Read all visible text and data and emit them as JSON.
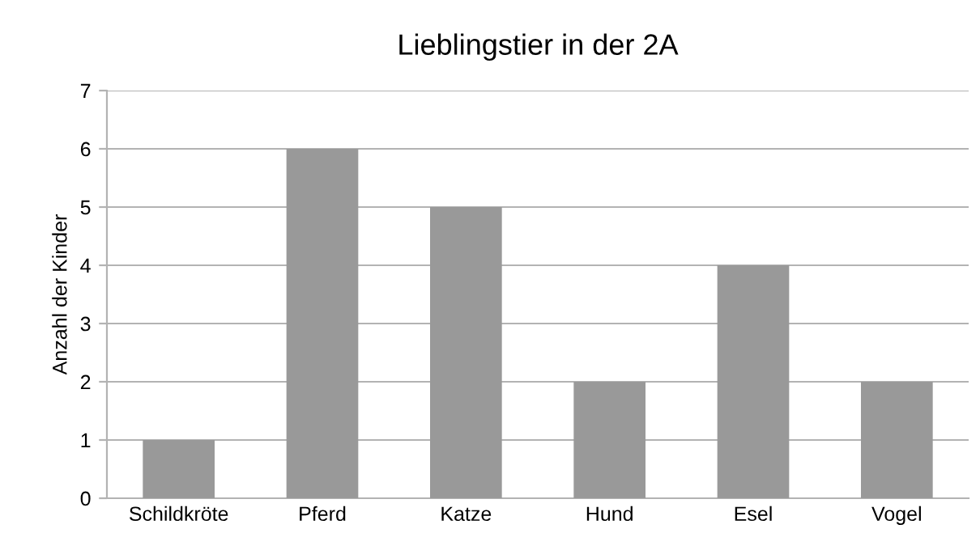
{
  "chart_data": {
    "type": "bar",
    "title": "Lieblingstier in der 2A",
    "ylabel": "Anzahl der Kinder",
    "categories": [
      "Schildkröte",
      "Pferd",
      "Katze",
      "Hund",
      "Esel",
      "Vogel"
    ],
    "values": [
      1,
      6,
      5,
      2,
      4,
      2
    ],
    "color": "#999999",
    "ylim": [
      0,
      7
    ],
    "yticks": [
      0,
      1,
      2,
      3,
      4,
      5,
      6,
      7
    ],
    "grid": "y",
    "legend": false
  }
}
